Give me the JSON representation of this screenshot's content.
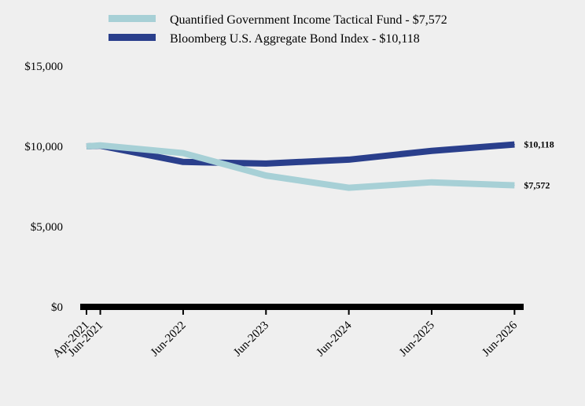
{
  "chart_data": {
    "type": "line",
    "x": [
      "Apr-2021",
      "Jun-2021",
      "Jun-2022",
      "Jun-2023",
      "Jun-2024",
      "Jun-2025",
      "Jun-2026"
    ],
    "series": [
      {
        "name": "Quantified Government Income Tactical Fund - $7,572",
        "color": "#a7d0d6",
        "values": [
          10000,
          10060,
          9580,
          8180,
          7420,
          7760,
          7572
        ],
        "end_label": "$7,572"
      },
      {
        "name": "Bloomberg U.S. Aggregate Bond Index - $10,118",
        "color": "#2a3f8c",
        "values": [
          10000,
          10040,
          9030,
          8930,
          9170,
          9720,
          10118
        ],
        "end_label": "$10,118"
      }
    ],
    "y_ticks": [
      "$0",
      "$5,000",
      "$10,000",
      "$15,000"
    ],
    "y_tick_values": [
      0,
      5000,
      10000,
      15000
    ],
    "ylim": [
      0,
      15000
    ],
    "grid": false,
    "legend_position": "top"
  }
}
